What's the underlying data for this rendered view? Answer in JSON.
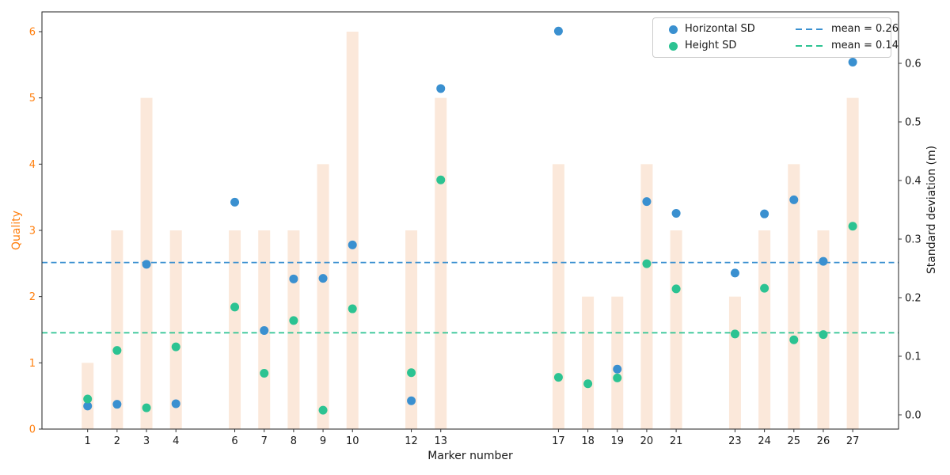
{
  "chart_data": {
    "type": "bar",
    "note": "bar series on left axis + two scatter series on right axis",
    "x": [
      1,
      2,
      3,
      4,
      6,
      7,
      8,
      9,
      10,
      12,
      13,
      17,
      18,
      19,
      20,
      21,
      23,
      24,
      25,
      26,
      27
    ],
    "series": [
      {
        "name": "Quality",
        "plot": "bar",
        "axis": "left",
        "color": "#fbe8da",
        "values": [
          1,
          3,
          5,
          3,
          3,
          3,
          3,
          4,
          6,
          3,
          5,
          4,
          2,
          2,
          4,
          3,
          2,
          3,
          4,
          3,
          5
        ]
      },
      {
        "name": "Horizontal SD",
        "plot": "scatter",
        "axis": "right",
        "color": "#3a90d0",
        "values": [
          0.015,
          0.018,
          0.257,
          0.019,
          0.363,
          0.144,
          0.232,
          0.233,
          0.29,
          0.024,
          0.557,
          0.655,
          null,
          0.078,
          0.364,
          0.344,
          0.242,
          0.343,
          0.367,
          0.262,
          0.602
        ]
      },
      {
        "name": "Height SD",
        "plot": "scatter",
        "axis": "right",
        "color": "#2cc392",
        "values": [
          0.027,
          0.11,
          0.012,
          0.116,
          0.184,
          0.071,
          0.161,
          0.008,
          0.181,
          0.072,
          0.401,
          0.064,
          0.053,
          0.063,
          0.258,
          0.215,
          0.138,
          0.216,
          0.128,
          0.137,
          0.322
        ]
      }
    ],
    "mean_lines": [
      {
        "label": "mean = 0.26",
        "value": 0.26,
        "color": "#3a90d0"
      },
      {
        "label": "mean = 0.14",
        "value": 0.14,
        "color": "#2cc392"
      }
    ],
    "xlabel": "Marker number",
    "ylabel_left": "Quality",
    "ylabel_right": "Standard deviation (m)",
    "yticks_left": [
      0,
      1,
      2,
      3,
      4,
      5,
      6
    ],
    "yticks_right": [
      0.0,
      0.1,
      0.2,
      0.3,
      0.4,
      0.5,
      0.6
    ],
    "ylim_left": [
      0,
      6.3
    ],
    "ylim_right": [
      -0.0243,
      0.688
    ],
    "grid": false,
    "legend_position": "upper right",
    "colors": {
      "bar_fill": "#fbe8da",
      "horizontal_sd": "#3a90d0",
      "height_sd": "#2cc392",
      "left_tick_labels": "#ff7f0e",
      "right_tick_labels": "#1a1a1a",
      "spine": "#222222"
    }
  },
  "legend": {
    "items": [
      {
        "label": "Horizontal SD",
        "swatch": "dot",
        "color": "#3a90d0"
      },
      {
        "label": "mean = 0.26",
        "swatch": "dash",
        "color": "#3a90d0"
      },
      {
        "label": "Height SD",
        "swatch": "dot",
        "color": "#2cc392"
      },
      {
        "label": "mean = 0.14",
        "swatch": "dash",
        "color": "#2cc392"
      }
    ]
  },
  "labels": {
    "xlabel": "Marker number",
    "ylabel_left": "Quality",
    "ylabel_right": "Standard deviation (m)"
  }
}
